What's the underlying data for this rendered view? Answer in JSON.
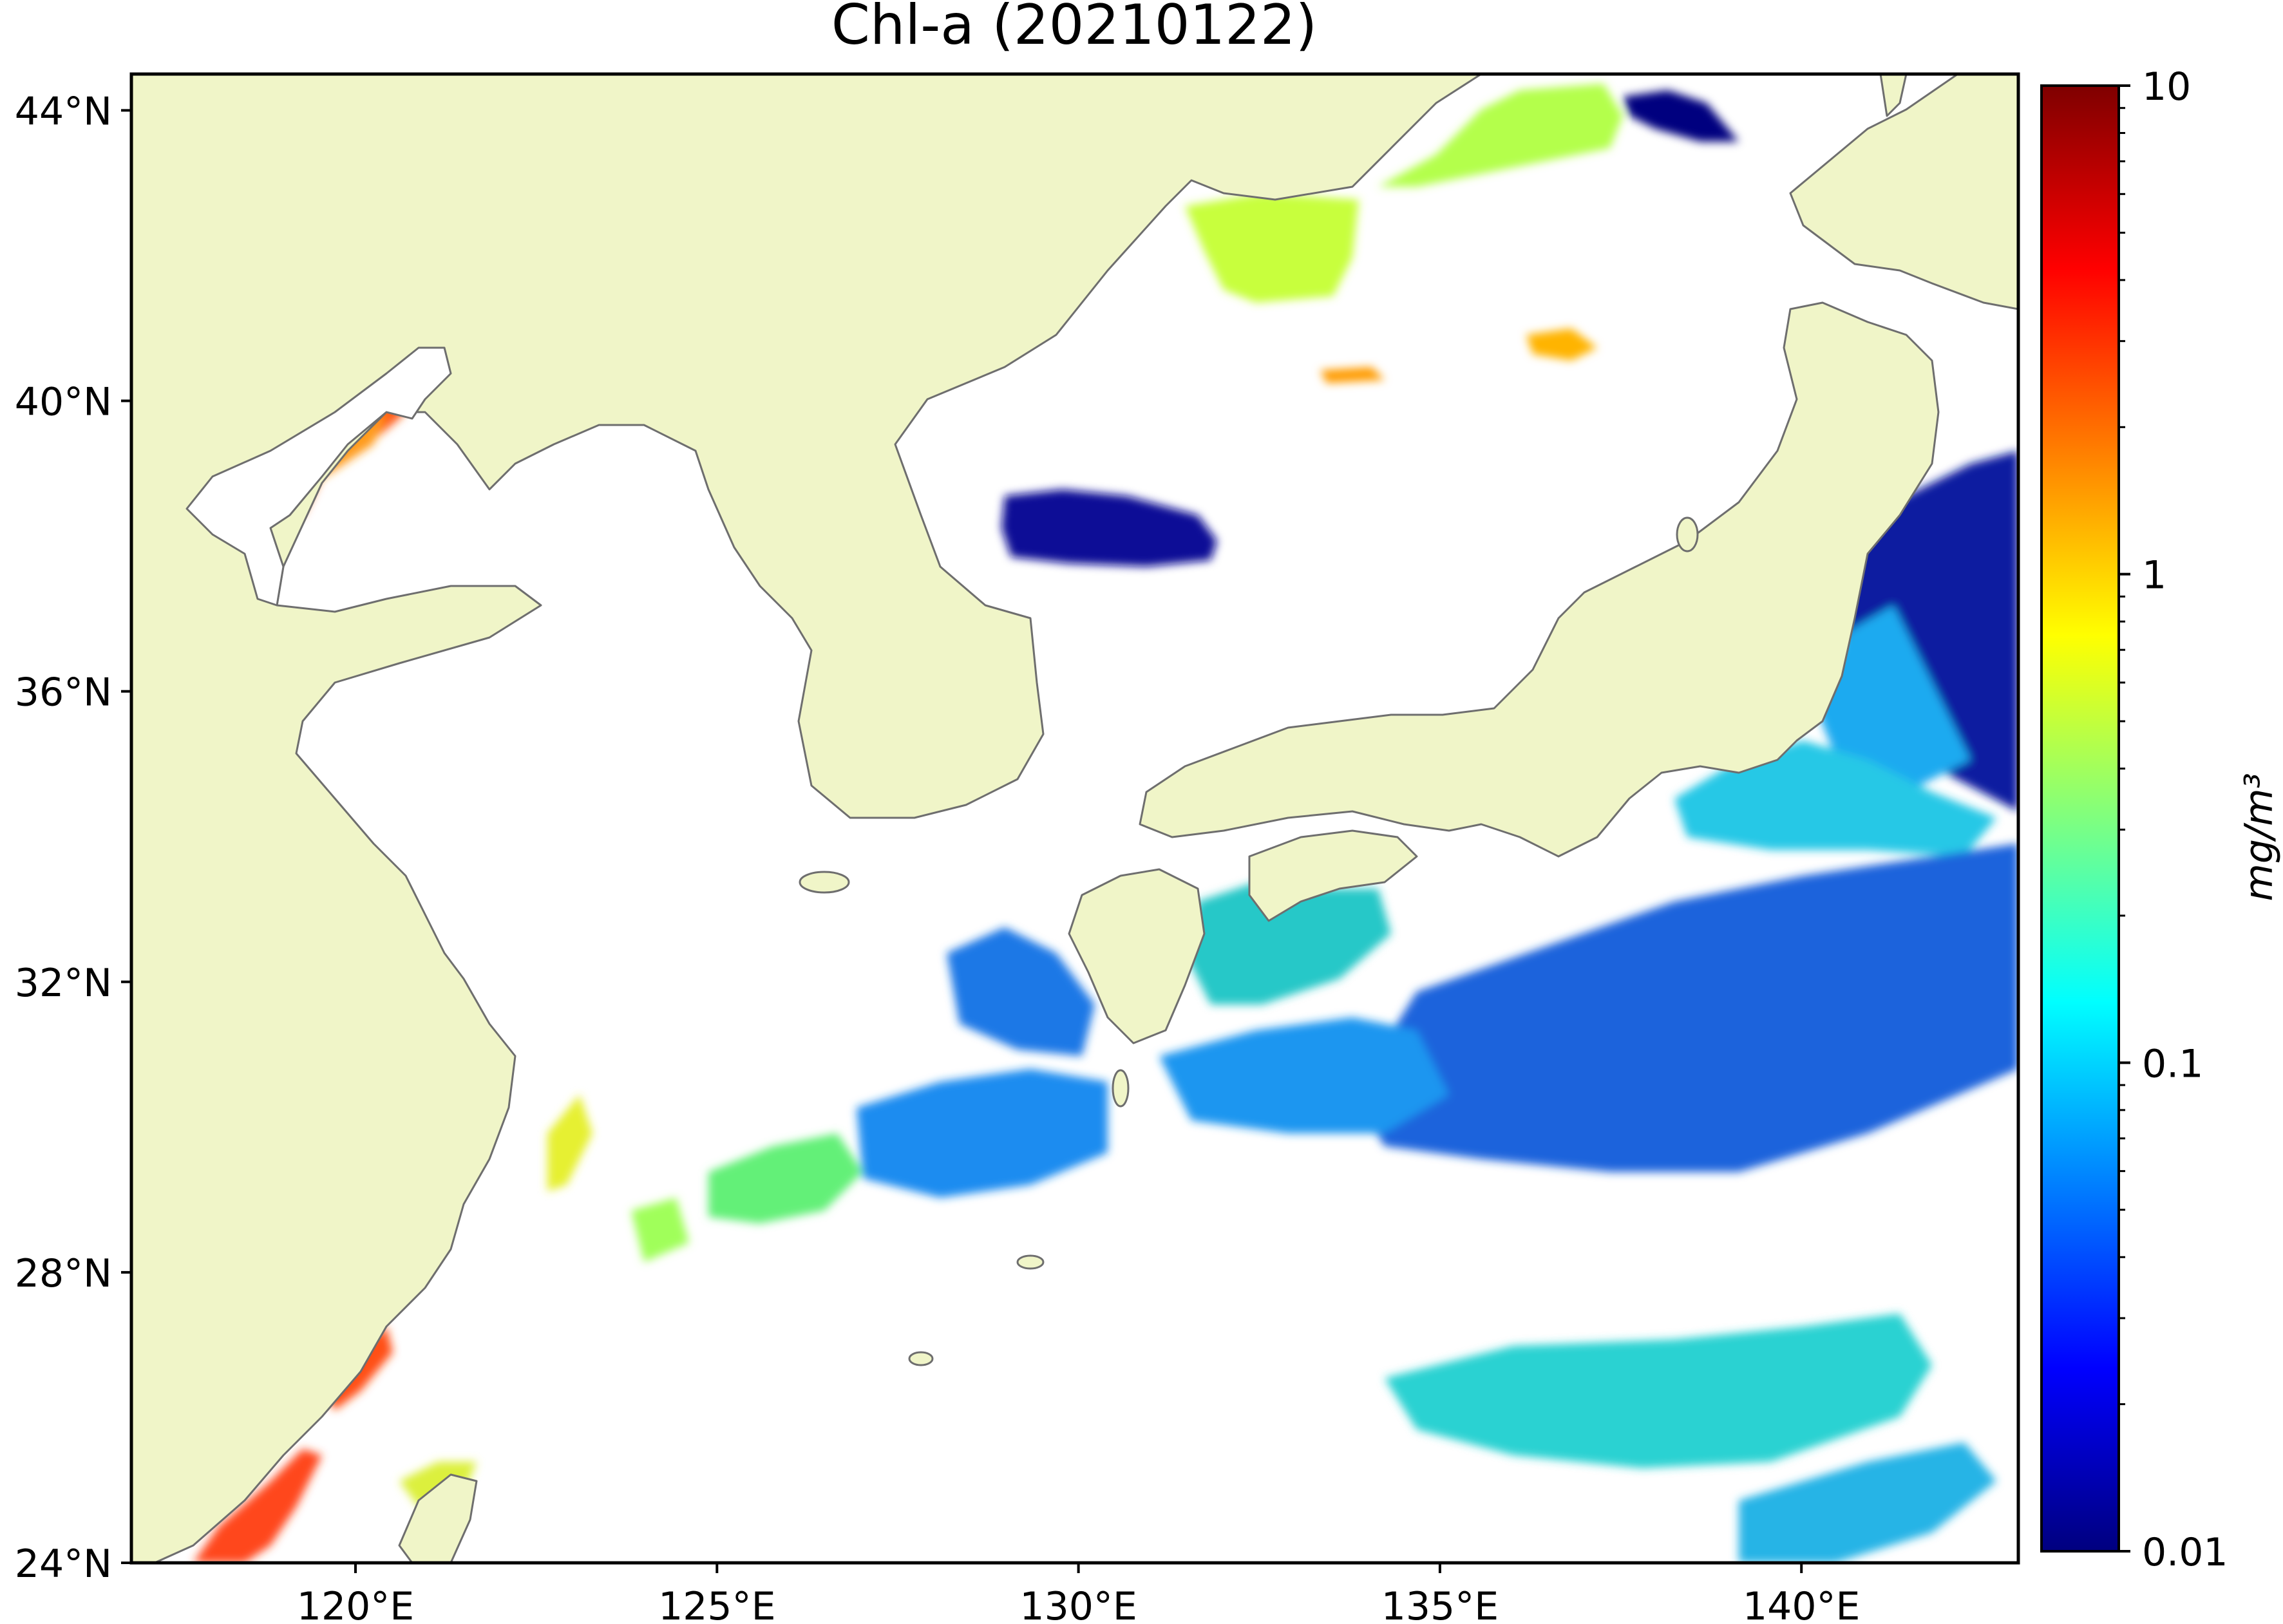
{
  "title": "Chl-a (20210122)",
  "map": {
    "lon_range": [
      116.9,
      143.0
    ],
    "lat_range": [
      24.0,
      44.5
    ],
    "land_color": "#f0f5c8",
    "coast_color": "#6e6e6e",
    "nodata_color": "#ffffff"
  },
  "axes": {
    "lat_ticks": [
      {
        "value": 44,
        "label": "44°N"
      },
      {
        "value": 40,
        "label": "40°N"
      },
      {
        "value": 36,
        "label": "36°N"
      },
      {
        "value": 32,
        "label": "32°N"
      },
      {
        "value": 28,
        "label": "28°N"
      },
      {
        "value": 24,
        "label": "24°N"
      }
    ],
    "lon_ticks": [
      {
        "value": 120,
        "label": "120°E"
      },
      {
        "value": 125,
        "label": "125°E"
      },
      {
        "value": 130,
        "label": "130°E"
      },
      {
        "value": 135,
        "label": "135°E"
      },
      {
        "value": 140,
        "label": "140°E"
      }
    ]
  },
  "colorbar": {
    "label": "mg/m³",
    "scale": "log",
    "range": [
      0.01,
      10
    ],
    "ticks": [
      {
        "value": 10,
        "label": "10"
      },
      {
        "value": 1,
        "label": "1"
      },
      {
        "value": 0.1,
        "label": "0.1"
      },
      {
        "value": 0.01,
        "label": "0.01"
      }
    ],
    "colormap": [
      "#00007f",
      "#0000ff",
      "#007fff",
      "#00ffff",
      "#7fff7f",
      "#ffff00",
      "#ff7f00",
      "#ff0000",
      "#7f0000"
    ]
  }
}
